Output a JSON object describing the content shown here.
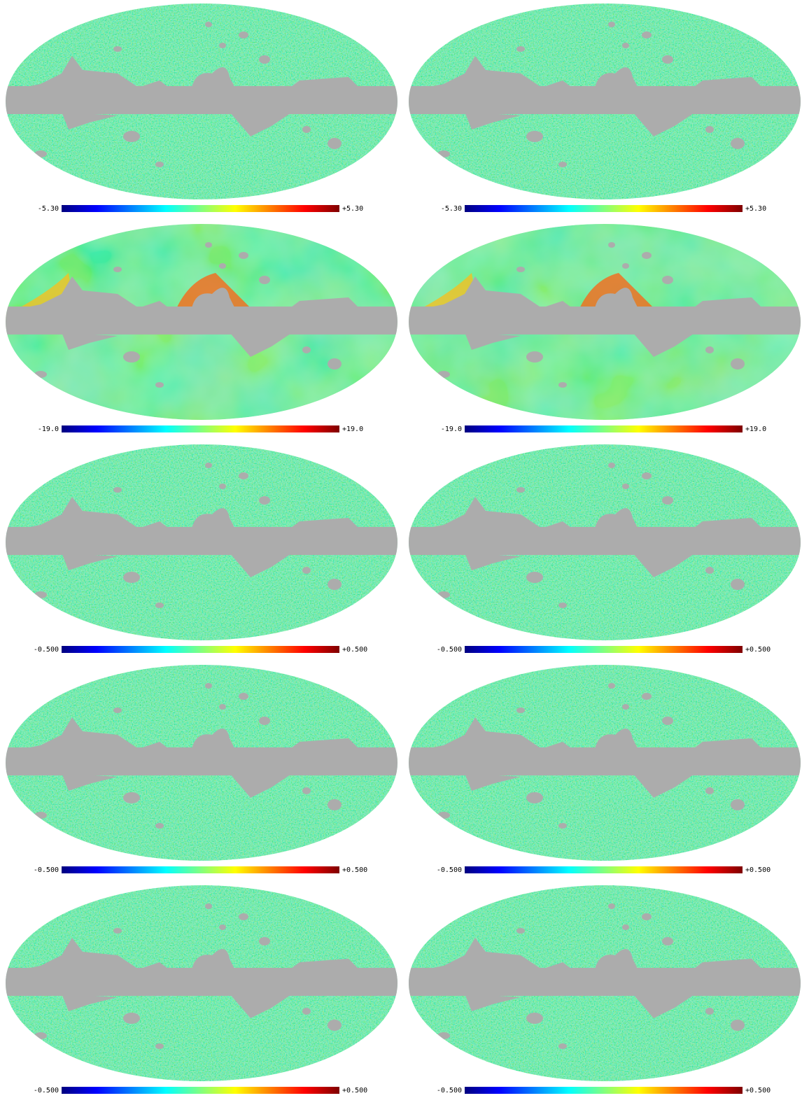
{
  "panels": [
    {
      "min_label": "-5.30",
      "max_label": "+5.30"
    },
    {
      "min_label": "-5.30",
      "max_label": "+5.30"
    },
    {
      "min_label": "-19.0",
      "max_label": "+19.0"
    },
    {
      "min_label": "-19.0",
      "max_label": "+19.0"
    },
    {
      "min_label": "-0.500",
      "max_label": "+0.500"
    },
    {
      "min_label": "-0.500",
      "max_label": "+0.500"
    },
    {
      "min_label": "-0.500",
      "max_label": "+0.500"
    },
    {
      "min_label": "-0.500",
      "max_label": "+0.500"
    },
    {
      "min_label": "-0.500",
      "max_label": "+0.500"
    },
    {
      "min_label": "-0.500",
      "max_label": "+0.500"
    }
  ]
}
